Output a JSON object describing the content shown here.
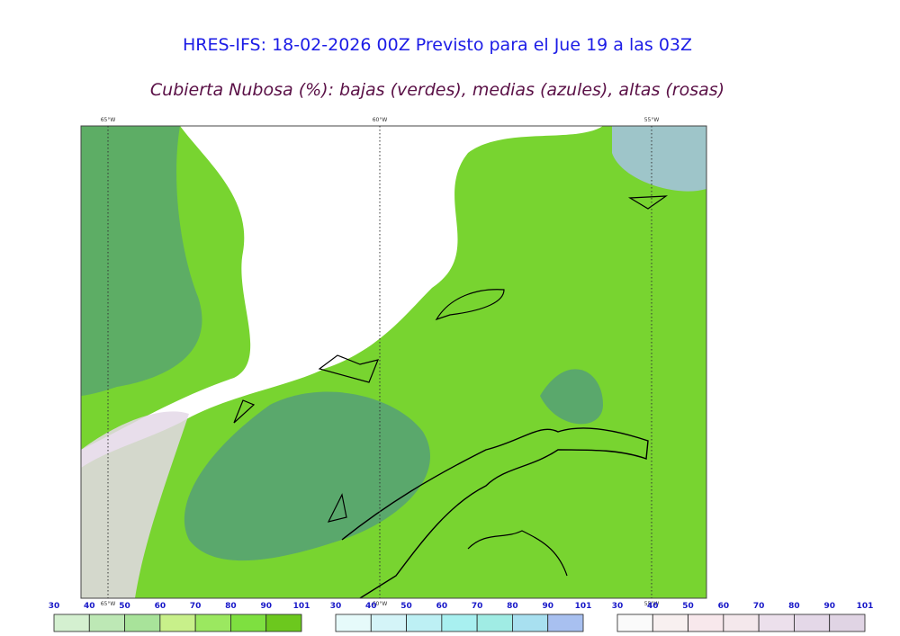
{
  "header": {
    "title": "HRES-IFS: 18-02-2026 00Z Previsto para el Jue 19 a las 03Z",
    "subtitle": "Cubierta Nubosa (%): bajas (verdes), medias (azules), altas (rosas)"
  },
  "map": {
    "longitude_labels": [
      "65°W",
      "60°W",
      "55°W"
    ]
  },
  "colorbars": [
    {
      "ticks": [
        30,
        40,
        50,
        60,
        70,
        80,
        90,
        101
      ],
      "colors": [
        "#d4f0d0",
        "#bde8b5",
        "#a8e39a",
        "#c8f08a",
        "#9be860",
        "#7ee040",
        "#6cc81e"
      ]
    },
    {
      "ticks": [
        30,
        40,
        50,
        60,
        70,
        80,
        90,
        101
      ],
      "colors": [
        "#e6fafa",
        "#d4f4f8",
        "#bdf0f4",
        "#a8f0f0",
        "#a0ece4",
        "#a8e0f0",
        "#a8c0f0"
      ]
    },
    {
      "ticks": [
        30,
        40,
        50,
        60,
        70,
        80,
        90,
        101
      ],
      "colors": [
        "#fafafa",
        "#f8f0f0",
        "#f8e8ec",
        "#f4e8ec",
        "#ece0ec",
        "#e4d8e8",
        "#e0d4e4"
      ]
    }
  ]
}
